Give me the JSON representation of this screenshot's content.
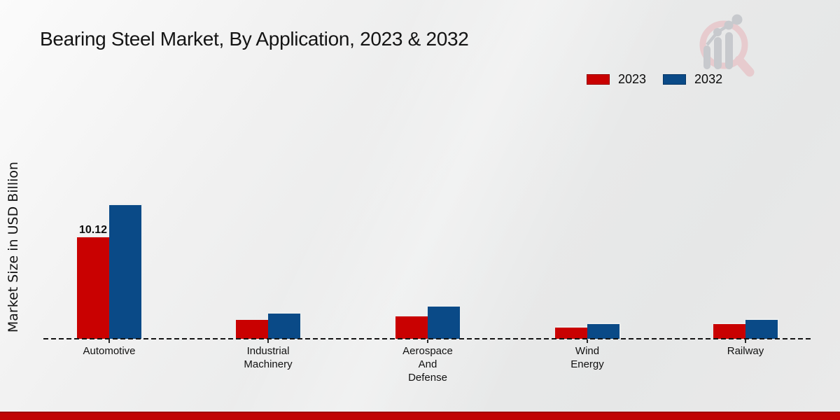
{
  "page": {
    "title": "Bearing Steel Market, By Application, 2023 & 2032",
    "ylabel": "Market Size in USD Billion"
  },
  "legend": {
    "position": "top-right",
    "items": [
      {
        "label": "2023",
        "color": "#c90101"
      },
      {
        "label": "2032",
        "color": "#0a4a87"
      }
    ]
  },
  "chart_data": {
    "type": "bar",
    "title": "Bearing Steel Market, By Application, 2023 & 2032",
    "xlabel": "",
    "ylabel": "Market Size in USD Billion",
    "categories": [
      "Automotive",
      "Industrial Machinery",
      "Aerospace And Defense",
      "Wind Energy",
      "Railway"
    ],
    "category_label_lines": [
      [
        "Automotive"
      ],
      [
        "Industrial",
        "Machinery"
      ],
      [
        "Aerospace",
        "And",
        "Defense"
      ],
      [
        "Wind",
        "Energy"
      ],
      [
        "Railway"
      ]
    ],
    "series": [
      {
        "name": "2023",
        "color": "#c90101",
        "values": [
          10.12,
          1.9,
          2.25,
          1.15,
          1.45
        ]
      },
      {
        "name": "2032",
        "color": "#0a4a87",
        "values": [
          13.3,
          2.5,
          3.2,
          1.5,
          1.85
        ]
      }
    ],
    "data_labels": [
      {
        "category_index": 0,
        "series_index": 0,
        "text": "10.12"
      }
    ],
    "ylim": [
      0,
      14
    ],
    "grid": false,
    "baseline_style": "dashed",
    "legend_position": "top-right"
  },
  "branding": {
    "logo": "magnifier-growth-chart-logo",
    "logo_ring_color": "#e7cacd",
    "logo_bar_color": "#c6c8cc",
    "footer_bar_color": "#c00404"
  }
}
